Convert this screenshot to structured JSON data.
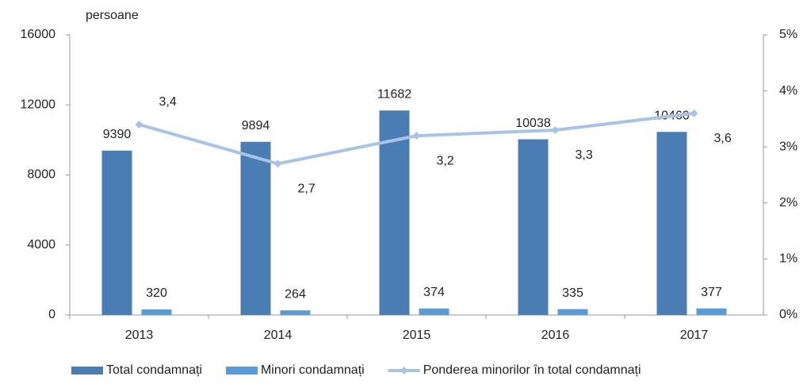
{
  "chart_data": {
    "type": "bar",
    "y_axis_label": "persoane",
    "categories": [
      "2013",
      "2014",
      "2015",
      "2016",
      "2017"
    ],
    "series": [
      {
        "name": "Total condamnați",
        "color": "#4a7db4",
        "values": [
          9390,
          9894,
          11682,
          10038,
          10460
        ]
      },
      {
        "name": "Minori condamnați",
        "color": "#5b9bd5",
        "values": [
          320,
          264,
          374,
          335,
          377
        ]
      },
      {
        "name": "Ponderea minorilor în total condamnați",
        "color": "#a9c3e6",
        "type": "line",
        "axis": "y2",
        "values": [
          3.4,
          2.7,
          3.2,
          3.3,
          3.6
        ],
        "value_labels": [
          "3,4",
          "2,7",
          "3,2",
          "3,3",
          "3,6"
        ]
      }
    ],
    "ylim": [
      0,
      16000
    ],
    "yticks": [
      0,
      4000,
      8000,
      12000,
      16000
    ],
    "y2lim": [
      0,
      5
    ],
    "y2ticks": [
      {
        "value": 0,
        "label": "0%"
      },
      {
        "value": 1,
        "label": "1%"
      },
      {
        "value": 2,
        "label": "2%"
      },
      {
        "value": 3,
        "label": "3%"
      },
      {
        "value": 4,
        "label": "4%"
      },
      {
        "value": 5,
        "label": "5%"
      }
    ],
    "grid": false
  }
}
